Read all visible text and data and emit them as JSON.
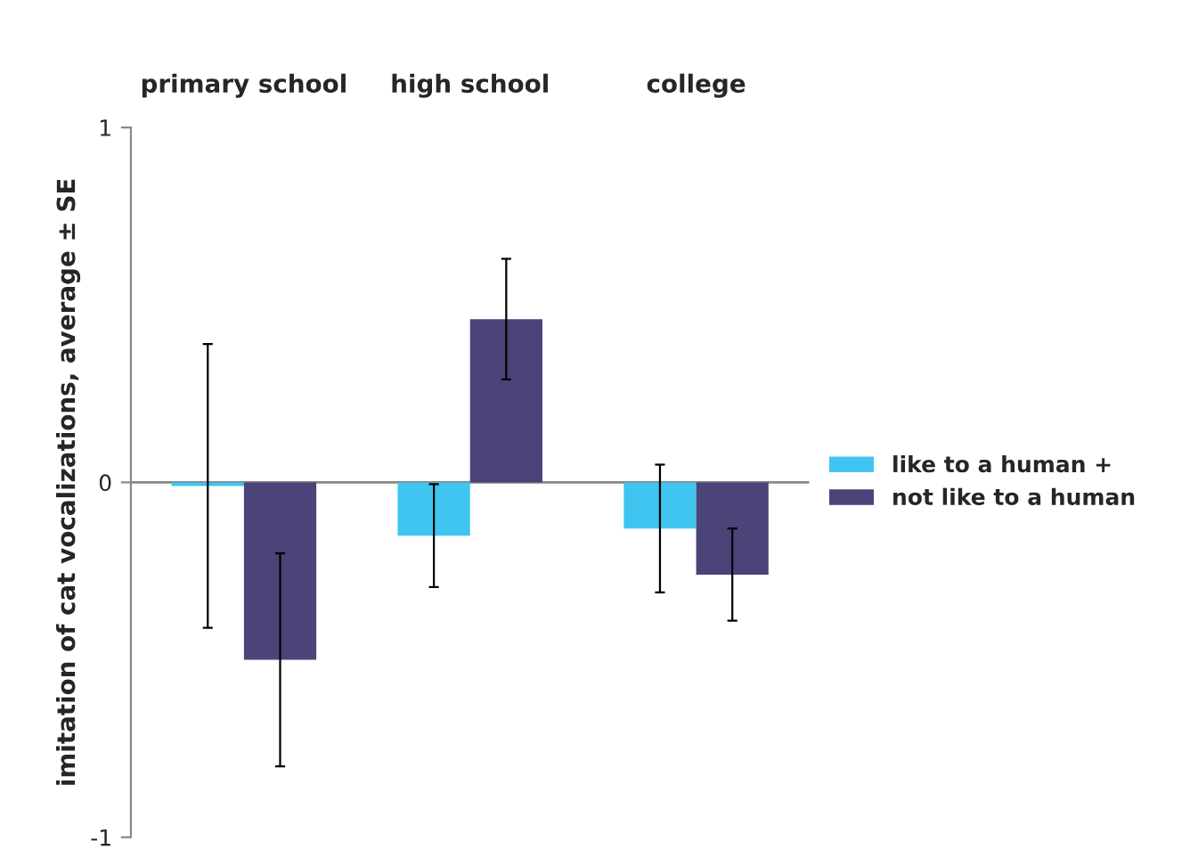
{
  "chart_data": {
    "type": "bar",
    "ylabel": "imitation of cat vocalizations, average ± SE",
    "categories": [
      "primary school",
      "high school",
      "college"
    ],
    "series": [
      {
        "name": "like to a human +",
        "color": "#3fc5f0",
        "values": [
          -0.01,
          -0.15,
          -0.13
        ],
        "errors": [
          0.4,
          0.145,
          0.18
        ]
      },
      {
        "name": "not like to a human",
        "color": "#4b4479",
        "values": [
          -0.5,
          0.46,
          -0.26
        ],
        "errors": [
          0.3,
          0.17,
          0.13
        ]
      }
    ],
    "ylim": [
      -1,
      1
    ],
    "yticks": [
      {
        "value": -1,
        "label": "-1"
      },
      0,
      1
    ],
    "legend": "right",
    "ref_lines": [
      {
        "axis": "y",
        "value": 0,
        "color": "#888888"
      }
    ]
  }
}
